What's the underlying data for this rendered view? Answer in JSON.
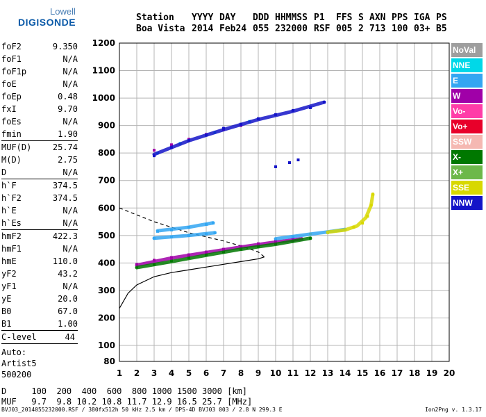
{
  "logo": {
    "line1": "Lowell",
    "line2": "DIGISONDE"
  },
  "header": {
    "labels": [
      "Station",
      "YYYY",
      "DAY",
      "DDD",
      "HHMMSS",
      "P1",
      "FFS",
      "S",
      "AXN",
      "PPS",
      "IGA",
      "PS"
    ],
    "values": [
      "Boa Vista",
      "2014",
      "Feb24",
      "055",
      "232000",
      "RSF",
      "005",
      "2",
      "713",
      "100",
      "03+",
      "B5"
    ]
  },
  "parameters_a": [
    {
      "name": "foF2",
      "value": "9.350"
    },
    {
      "name": "foF1",
      "value": "N/A"
    },
    {
      "name": "foF1p",
      "value": "N/A"
    },
    {
      "name": "foE",
      "value": "N/A"
    },
    {
      "name": "foEp",
      "value": "0.48"
    },
    {
      "name": "fxI",
      "value": "9.70"
    },
    {
      "name": "foEs",
      "value": "N/A"
    },
    {
      "name": "fmin",
      "value": "1.90"
    }
  ],
  "parameters_b": [
    {
      "name": "MUF(D)",
      "value": "25.74"
    },
    {
      "name": "M(D)",
      "value": "2.75"
    },
    {
      "name": "D",
      "value": "N/A"
    }
  ],
  "parameters_c": [
    {
      "name": "h`F",
      "value": "374.5"
    },
    {
      "name": "h`F2",
      "value": "374.5"
    },
    {
      "name": "h`E",
      "value": "N/A"
    },
    {
      "name": "h`Es",
      "value": "N/A"
    }
  ],
  "parameters_d": [
    {
      "name": "hmF2",
      "value": "422.3"
    },
    {
      "name": "hmF1",
      "value": "N/A"
    },
    {
      "name": "hmE",
      "value": "110.0"
    },
    {
      "name": "yF2",
      "value": "43.2"
    },
    {
      "name": "yF1",
      "value": "N/A"
    },
    {
      "name": "yE",
      "value": "20.0"
    },
    {
      "name": "B0",
      "value": "67.0"
    },
    {
      "name": "B1",
      "value": "1.00"
    }
  ],
  "clevel": {
    "name": "C-level",
    "value": "44"
  },
  "autoscale": {
    "line1": "Auto:",
    "line2": "Artist5",
    "line3": "500200"
  },
  "legend": [
    {
      "label": "NoVal",
      "color": "#9e9e9e"
    },
    {
      "label": "NNE",
      "color": "#00d8e8"
    },
    {
      "label": "E",
      "color": "#33a6f2"
    },
    {
      "label": "W",
      "color": "#a000a8"
    },
    {
      "label": "Vo-",
      "color": "#ff3da8"
    },
    {
      "label": "Vo+",
      "color": "#e8002a"
    },
    {
      "label": "SSW",
      "color": "#f5b8b2"
    },
    {
      "label": "X-",
      "color": "#007800"
    },
    {
      "label": "X+",
      "color": "#6db84a"
    },
    {
      "label": "SSE",
      "color": "#d8d800"
    },
    {
      "label": "NNW",
      "color": "#1414c8"
    }
  ],
  "muf_table": {
    "d_label": "D",
    "d_values": [
      "100",
      "200",
      "400",
      "600",
      "800",
      "1000",
      "1500",
      "3000"
    ],
    "d_unit": "[km]",
    "muf_label": "MUF",
    "muf_values": [
      "9.7",
      "9.8",
      "10.2",
      "10.8",
      "11.7",
      "12.9",
      "16.5",
      "25.7"
    ],
    "muf_unit": "[MHz]"
  },
  "footer": {
    "left": "BVJ03_2014055232000.RSF / 380fx512h 50 kHz 2.5 km / DPS-4D BVJ03 003 / 2.8 N 299.3 E",
    "right": "Ion2Png v. 1.3.17"
  },
  "chart_data": {
    "type": "scatter",
    "xlim": [
      1,
      20
    ],
    "ylim": [
      80,
      1200
    ],
    "x_ticks": [
      "1",
      "2",
      "3",
      "4",
      "5",
      "6",
      "7",
      "8",
      "9",
      "10",
      "11",
      "12",
      "13",
      "14",
      "15",
      "16",
      "17",
      "18",
      "19",
      "20"
    ],
    "y_ticks": [
      "80",
      "100",
      "200",
      "300",
      "400",
      "500",
      "600",
      "700",
      "800",
      "900",
      "1000",
      "1100",
      "1200"
    ],
    "grid": true,
    "series": [
      {
        "name": "E",
        "color": "#33a6f2",
        "points": [
          [
            3.2,
            515
          ],
          [
            4.0,
            520
          ],
          [
            5.0,
            530
          ],
          [
            6.0,
            540
          ],
          [
            6.4,
            545
          ],
          [
            3.0,
            490
          ],
          [
            4.0,
            495
          ],
          [
            5.0,
            500
          ],
          [
            6.0,
            505
          ],
          [
            6.5,
            510
          ],
          [
            10,
            485
          ],
          [
            11,
            495
          ],
          [
            12,
            505
          ],
          [
            13,
            513
          ],
          [
            14,
            520
          ]
        ]
      },
      {
        "name": "W",
        "color": "#a000a8",
        "points": [
          [
            2,
            395
          ],
          [
            3,
            410
          ],
          [
            4,
            420
          ],
          [
            5,
            430
          ],
          [
            6,
            440
          ],
          [
            7,
            450
          ],
          [
            8,
            460
          ],
          [
            9,
            470
          ],
          [
            10,
            478
          ],
          [
            11,
            485
          ],
          [
            3,
            810
          ],
          [
            4,
            830
          ],
          [
            5,
            850
          ],
          [
            6,
            868
          ],
          [
            7,
            885
          ],
          [
            8,
            900
          ]
        ]
      },
      {
        "name": "X-",
        "color": "#007800",
        "points": [
          [
            2,
            385
          ],
          [
            3,
            395
          ],
          [
            4,
            408
          ],
          [
            5,
            420
          ],
          [
            6,
            430
          ],
          [
            7,
            440
          ],
          [
            8,
            450
          ],
          [
            9,
            460
          ],
          [
            10,
            470
          ],
          [
            11,
            480
          ],
          [
            12,
            490
          ]
        ]
      },
      {
        "name": "SSE",
        "color": "#d8d800",
        "points": [
          [
            12,
            505
          ],
          [
            13,
            510
          ],
          [
            14,
            520
          ],
          [
            14.5,
            530
          ],
          [
            15,
            545
          ],
          [
            15.3,
            570
          ],
          [
            15.5,
            610
          ],
          [
            15.6,
            650
          ]
        ]
      },
      {
        "name": "NNW",
        "color": "#1414c8",
        "points": [
          [
            3,
            790
          ],
          [
            4,
            820
          ],
          [
            5,
            845
          ],
          [
            6,
            865
          ],
          [
            7,
            890
          ],
          [
            8,
            905
          ],
          [
            9,
            925
          ],
          [
            10,
            940
          ],
          [
            11,
            955
          ],
          [
            12,
            965
          ],
          [
            12.8,
            985
          ],
          [
            10,
            750
          ],
          [
            10.8,
            765
          ],
          [
            11.3,
            775
          ]
        ]
      },
      {
        "name": "NNE",
        "color": "#00d8e8",
        "points": [
          [
            3.2,
            800
          ],
          [
            4.5,
            835
          ],
          [
            6.5,
            875
          ],
          [
            8.5,
            915
          ]
        ]
      }
    ],
    "profile_solid": {
      "x": [
        1,
        1.5,
        2,
        3,
        4,
        5,
        6,
        7,
        8,
        9,
        9.35
      ],
      "y": [
        235,
        290,
        320,
        350,
        365,
        375,
        385,
        395,
        405,
        415,
        422
      ]
    },
    "profile_dashed": {
      "x": [
        1,
        2,
        3,
        4,
        5,
        6,
        7,
        8,
        9,
        9.35
      ],
      "y": [
        600,
        575,
        550,
        530,
        510,
        495,
        480,
        462,
        440,
        422
      ]
    }
  }
}
